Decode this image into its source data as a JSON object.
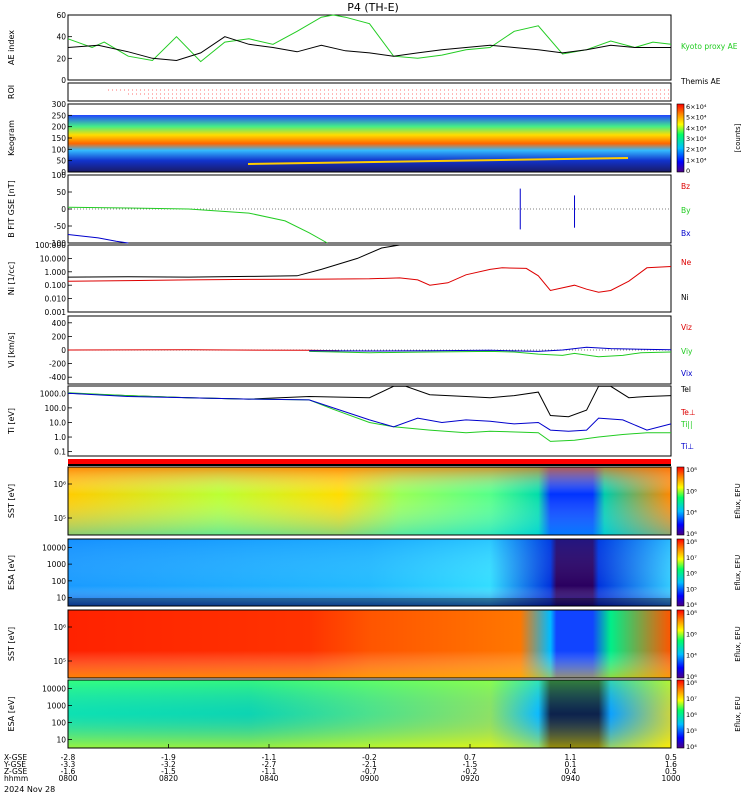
{
  "title": "P4 (TH-E)",
  "chart_data": {
    "type": "line",
    "title": "P4 (TH-E)",
    "date_label": "2024 Nov 28",
    "panels": [
      {
        "id": "ae",
        "ylabel": "AE index",
        "ylim": [
          0,
          60
        ],
        "yticks": [
          "0",
          "20",
          "40",
          "60"
        ],
        "legend": [
          "Kyoto proxy AE",
          "Themis AE"
        ],
        "legend_colors": [
          "#22cc22",
          "#000000"
        ],
        "series": [
          {
            "name": "Kyoto proxy AE",
            "color": "#22cc22",
            "t": [
              0,
              0.04,
              0.06,
              0.1,
              0.14,
              0.18,
              0.22,
              0.26,
              0.3,
              0.34,
              0.38,
              0.42,
              0.44,
              0.46,
              0.5,
              0.54,
              0.58,
              0.62,
              0.66,
              0.7,
              0.74,
              0.78,
              0.82,
              0.86,
              0.9,
              0.94,
              0.97,
              1.0
            ],
            "values": [
              38,
              30,
              35,
              22,
              18,
              40,
              17,
              35,
              38,
              33,
              45,
              58,
              60,
              58,
              52,
              22,
              20,
              23,
              28,
              30,
              45,
              50,
              24,
              28,
              36,
              30,
              35,
              33
            ]
          },
          {
            "name": "Themis AE",
            "color": "#000000",
            "t": [
              0,
              0.05,
              0.1,
              0.14,
              0.18,
              0.22,
              0.26,
              0.3,
              0.34,
              0.38,
              0.42,
              0.46,
              0.5,
              0.54,
              0.58,
              0.62,
              0.66,
              0.7,
              0.74,
              0.78,
              0.82,
              0.86,
              0.9,
              0.94,
              1.0
            ],
            "values": [
              30,
              32,
              26,
              20,
              18,
              25,
              40,
              33,
              30,
              26,
              32,
              27,
              25,
              22,
              25,
              28,
              30,
              32,
              30,
              28,
              25,
              28,
              32,
              30,
              30
            ]
          }
        ]
      },
      {
        "id": "roi",
        "ylabel": "ROI",
        "ylim": [
          0,
          1
        ]
      },
      {
        "id": "keogram",
        "ylabel": "Keogram",
        "ylim": [
          0,
          300
        ],
        "yticks": [
          "0",
          "50",
          "100",
          "150",
          "200",
          "250",
          "300"
        ],
        "colorbar": {
          "label": "[counts]",
          "ticks": [
            "0",
            "1×10⁴",
            "2×10⁴",
            "3×10⁴",
            "4×10⁴",
            "5×10⁴",
            "6×10⁴"
          ]
        }
      },
      {
        "id": "bfit",
        "ylabel": "B FIT GSE [nT]",
        "ylim": [
          -100,
          100
        ],
        "yticks": [
          "-100",
          "-50",
          "0",
          "50",
          "100"
        ],
        "legend": [
          "Bz",
          "By",
          "Bx"
        ],
        "legend_colors": [
          "#dd0000",
          "#22cc22",
          "#0000cc"
        ],
        "series": [
          {
            "name": "By",
            "color": "#22cc22",
            "t": [
              0,
              0.1,
              0.2,
              0.3,
              0.36,
              0.4,
              0.43
            ],
            "values": [
              5,
              3,
              0,
              -12,
              -35,
              -70,
              -100
            ]
          },
          {
            "name": "Bx",
            "color": "#0000cc",
            "t": [
              0,
              0.05,
              0.08,
              0.1
            ],
            "values": [
              -75,
              -85,
              -95,
              -100
            ]
          }
        ]
      },
      {
        "id": "ni",
        "ylabel": "Ni [1/cc]",
        "ylim_log10": [
          -3,
          2
        ],
        "yticks": [
          "0.001",
          "0.010",
          "0.100",
          "1.000",
          "10.000",
          "100.000"
        ],
        "legend": [
          "Ne",
          "Ni"
        ],
        "legend_colors": [
          "#dd0000",
          "#000000"
        ],
        "series": [
          {
            "name": "Ni",
            "color": "#000000",
            "t": [
              0,
              0.1,
              0.2,
              0.3,
              0.38,
              0.42,
              0.48,
              0.52,
              0.55
            ],
            "values": [
              0.4,
              0.42,
              0.4,
              0.45,
              0.5,
              1.5,
              10,
              60,
              100
            ]
          },
          {
            "name": "Ne",
            "color": "#dd0000",
            "t": [
              0,
              0.1,
              0.2,
              0.3,
              0.4,
              0.5,
              0.55,
              0.58,
              0.6,
              0.63,
              0.66,
              0.7,
              0.72,
              0.76,
              0.78,
              0.8,
              0.84,
              0.86,
              0.88,
              0.9,
              0.93,
              0.96,
              1.0
            ],
            "values": [
              0.2,
              0.22,
              0.25,
              0.27,
              0.28,
              0.3,
              0.35,
              0.25,
              0.1,
              0.15,
              0.6,
              1.5,
              2,
              1.8,
              0.5,
              0.04,
              0.1,
              0.05,
              0.03,
              0.04,
              0.2,
              2,
              2.5
            ]
          }
        ]
      },
      {
        "id": "vi",
        "ylabel": "Vi [km/s]",
        "ylim": [
          -500,
          500
        ],
        "yticks": [
          "-400",
          "-200",
          "0",
          "200",
          "400"
        ],
        "legend": [
          "Viz",
          "Viy",
          "Vix"
        ],
        "legend_colors": [
          "#dd0000",
          "#22cc22",
          "#0000cc"
        ],
        "series": [
          {
            "name": "Viz",
            "color": "#dd0000",
            "t": [
              0,
              0.2,
              0.4,
              0.45
            ],
            "values": [
              0,
              3,
              -5,
              -10
            ]
          },
          {
            "name": "Viy",
            "color": "#22cc22",
            "t": [
              0.4,
              0.5,
              0.6,
              0.7,
              0.74,
              0.78,
              0.82,
              0.84,
              0.88,
              0.92,
              0.95,
              1.0
            ],
            "values": [
              -20,
              -40,
              -30,
              -20,
              -30,
              -60,
              -80,
              -50,
              -100,
              -80,
              -40,
              -30
            ]
          },
          {
            "name": "Vix",
            "color": "#0000cc",
            "t": [
              0.4,
              0.5,
              0.6,
              0.7,
              0.78,
              0.82,
              0.86,
              0.9,
              0.95,
              1.0
            ],
            "values": [
              -10,
              -15,
              -10,
              -5,
              -20,
              0,
              40,
              20,
              10,
              5
            ]
          }
        ]
      },
      {
        "id": "ti",
        "ylabel": "Ti [eV]",
        "ylim_log10": [
          -1.3,
          3.5
        ],
        "yticks": [
          "0.1",
          "1.0",
          "10.0",
          "100.0",
          "1000.0"
        ],
        "legend": [
          "Tel",
          "Te⊥",
          "Ti||",
          "Ti⊥"
        ],
        "legend_colors": [
          "#000000",
          "#dd0000",
          "#22cc22",
          "#0000cc"
        ],
        "series": [
          {
            "name": "Tel",
            "color": "#000000",
            "t": [
              0,
              0.1,
              0.2,
              0.3,
              0.4,
              0.5,
              0.54,
              0.56,
              0.6,
              0.66,
              0.7,
              0.74,
              0.78,
              0.8,
              0.83,
              0.86,
              0.88,
              0.9,
              0.93,
              0.96,
              1.0
            ],
            "values": [
              1000,
              700,
              500,
              400,
              600,
              500,
              3000,
              3000,
              800,
              600,
              500,
              700,
              1200,
              30,
              25,
              70,
              3000,
              3000,
              500,
              600,
              700
            ]
          },
          {
            "name": "Ti||",
            "color": "#22cc22",
            "t": [
              0,
              0.1,
              0.2,
              0.3,
              0.4,
              0.44,
              0.5,
              0.54,
              0.6,
              0.66,
              0.7,
              0.78,
              0.8,
              0.84,
              0.88,
              0.92,
              0.96,
              1.0
            ],
            "values": [
              1100,
              700,
              500,
              400,
              350,
              80,
              10,
              5,
              3,
              2,
              2.5,
              2,
              0.5,
              0.6,
              1,
              1.5,
              2,
              2
            ]
          },
          {
            "name": "Ti⊥",
            "color": "#0000cc",
            "t": [
              0,
              0.1,
              0.2,
              0.3,
              0.4,
              0.44,
              0.5,
              0.54,
              0.58,
              0.62,
              0.66,
              0.7,
              0.74,
              0.78,
              0.8,
              0.83,
              0.86,
              0.88,
              0.92,
              0.96,
              1.0
            ],
            "values": [
              1000,
              600,
              500,
              400,
              350,
              100,
              15,
              5,
              20,
              10,
              15,
              12,
              8,
              10,
              3,
              2.5,
              3,
              20,
              15,
              3,
              8
            ]
          }
        ]
      },
      {
        "id": "sst_perp",
        "ylabel": "SST [eV]",
        "yticks": [
          "10⁵",
          "10⁶"
        ],
        "colorbar": {
          "label": "Eflux, EFU",
          "ticks": [
            "10⁶",
            "10⁴",
            "10⁶",
            "10⁸"
          ]
        }
      },
      {
        "id": "esa_perp",
        "ylabel": "ESA [eV]",
        "yticks": [
          "10",
          "100",
          "1000",
          "10000"
        ],
        "colorbar": {
          "label": "Eflux, EFU",
          "ticks": [
            "10⁴",
            "10⁵",
            "10⁶",
            "10⁷",
            "10⁸"
          ]
        }
      },
      {
        "id": "sst_para",
        "ylabel": "SST [eV]",
        "yticks": [
          "10⁵",
          "10⁶"
        ],
        "colorbar": {
          "label": "Eflux, EFU",
          "ticks": [
            "10⁶",
            "10⁴",
            "10⁶",
            "10⁸"
          ]
        }
      },
      {
        "id": "esa_para",
        "ylabel": "ESA [eV]",
        "yticks": [
          "10",
          "100",
          "1000",
          "10000"
        ],
        "colorbar": {
          "label": "Eflux, EFU",
          "ticks": [
            "10⁴",
            "10⁵",
            "10⁶",
            "10⁷",
            "10⁸"
          ]
        }
      }
    ],
    "x_axis": {
      "row_labels": [
        "X-GSE",
        "Y-GSE",
        "Z-GSE",
        "hhmm"
      ],
      "ticks": [
        {
          "X-GSE": "-2.8",
          "Y-GSE": "-3.3",
          "Z-GSE": "-1.6",
          "hhmm": "0800"
        },
        {
          "X-GSE": "-1.9",
          "Y-GSE": "-3.2",
          "Z-GSE": "-1.5",
          "hhmm": "0820"
        },
        {
          "X-GSE": "-1.1",
          "Y-GSE": "-2.7",
          "Z-GSE": "-1.1",
          "hhmm": "0840"
        },
        {
          "X-GSE": "-0.2",
          "Y-GSE": "-2.1",
          "Z-GSE": "-0.7",
          "hhmm": "0900"
        },
        {
          "X-GSE": "0.7",
          "Y-GSE": "-1.5",
          "Z-GSE": "-0.2",
          "hhmm": "0920"
        },
        {
          "X-GSE": "1.1",
          "Y-GSE": "0.1",
          "Z-GSE": "0.4",
          "hhmm": "0940"
        },
        {
          "X-GSE": "0.5",
          "Y-GSE": "1.6",
          "Z-GSE": "0.5",
          "hhmm": "1000"
        }
      ]
    }
  }
}
